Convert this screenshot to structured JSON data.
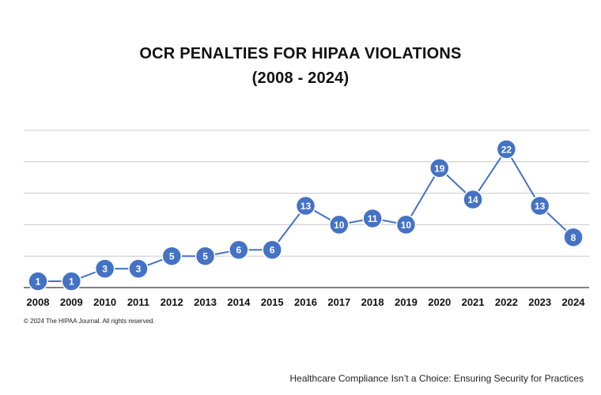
{
  "title_line1": "OCR PENALTIES FOR HIPAA VIOLATIONS",
  "title_line2": "(2008 - 2024)",
  "copyright": "© 2024 The HIPAA Journal. All rights reserved.",
  "footer": "Healthcare Compliance Isn’t a Choice: Ensuring Security for Practices",
  "chart_data": {
    "type": "line",
    "title": "OCR PENALTIES FOR HIPAA VIOLATIONS (2008 - 2024)",
    "x": [
      "2008",
      "2009",
      "2010",
      "2011",
      "2012",
      "2013",
      "2014",
      "2015",
      "2016",
      "2017",
      "2018",
      "2019",
      "2020",
      "2021",
      "2022",
      "2023",
      "2024"
    ],
    "series": [
      {
        "values": [
          1,
          1,
          3,
          3,
          5,
          5,
          6,
          6,
          13,
          10,
          11,
          10,
          19,
          14,
          22,
          13,
          8
        ]
      }
    ],
    "ylim": [
      0,
      25
    ],
    "grid": true,
    "data_labels": true,
    "line_color": "#4472C4",
    "marker_color": "#4472C4",
    "label_color": "#ffffff",
    "grid_color": "#c8c8c8",
    "axis_color": "#595959"
  }
}
